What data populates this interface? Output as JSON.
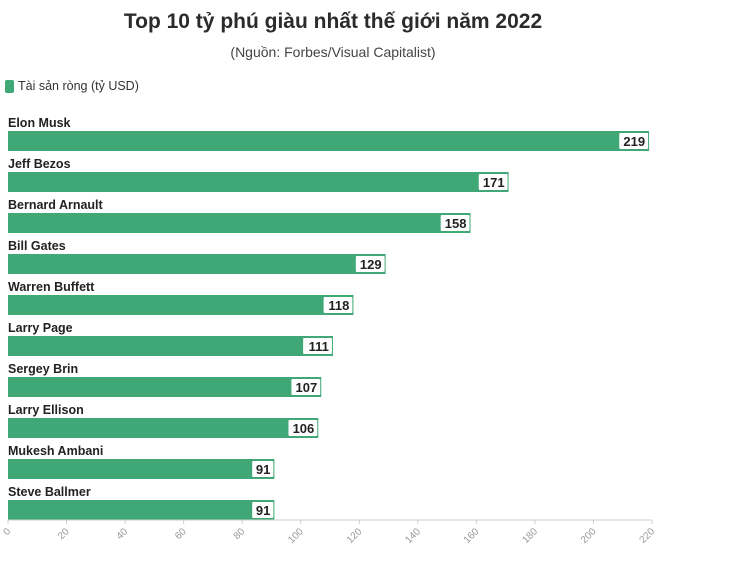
{
  "chart_data": {
    "type": "bar",
    "orientation": "horizontal",
    "title": "Top 10 tỷ phú giàu nhất thế giới năm 2022",
    "subtitle": "(Nguồn: Forbes/Visual Capitalist)",
    "legend": {
      "label": "Tài sản ròng (tỷ USD)",
      "placement": "top-left"
    },
    "categories": [
      "Elon Musk",
      "Jeff Bezos",
      "Bernard Arnault",
      "Bill Gates",
      "Warren Buffett",
      "Larry Page",
      "Sergey Brin",
      "Larry Ellison",
      "Mukesh Ambani",
      "Steve Ballmer"
    ],
    "values": [
      219,
      171,
      158,
      129,
      118,
      111,
      107,
      106,
      91,
      91
    ],
    "xlim": [
      0,
      220
    ],
    "xticks": [
      0,
      20,
      40,
      60,
      80,
      100,
      120,
      140,
      160,
      180,
      200,
      220
    ],
    "grid": false,
    "bar_color": "#3fa876"
  }
}
